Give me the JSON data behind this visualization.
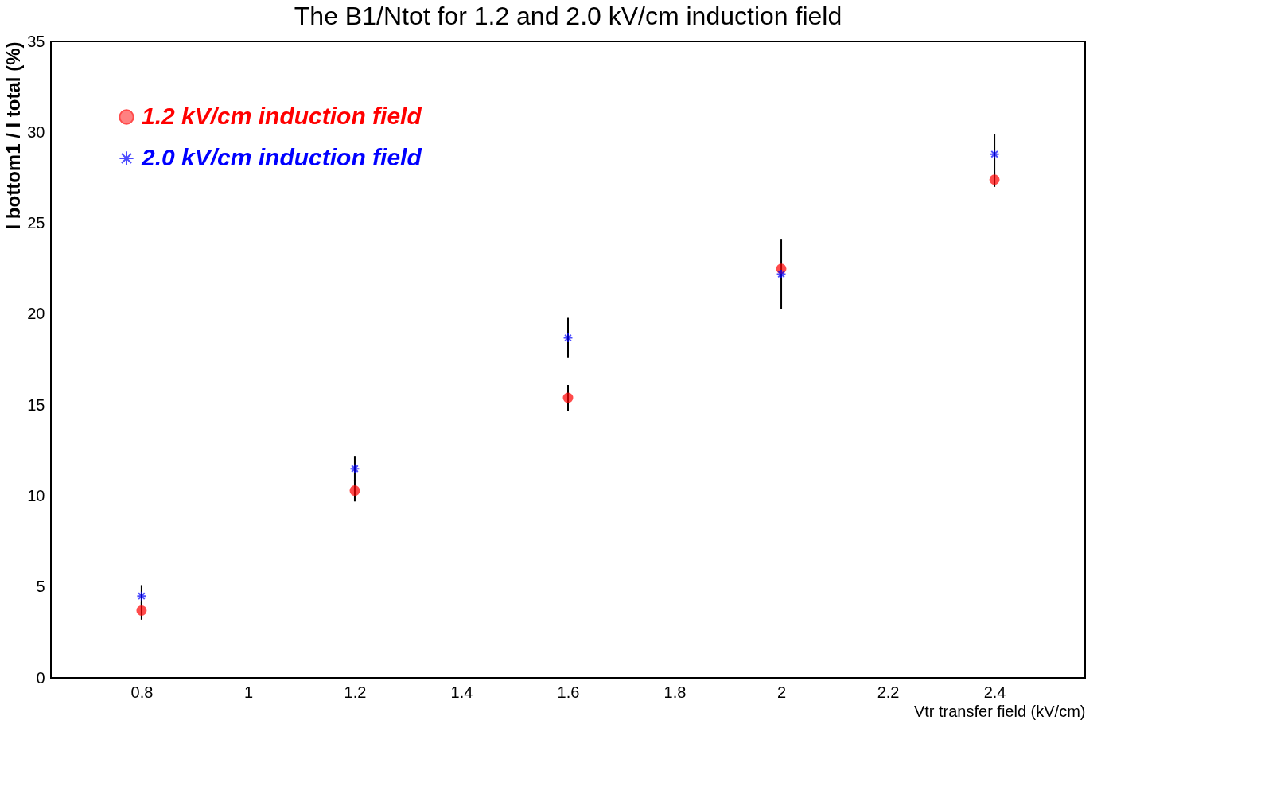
{
  "chart_data": {
    "type": "scatter",
    "title": "The B1/Ntot for 1.2 and 2.0 kV/cm induction field",
    "xlabel": "Vtr transfer field (kV/cm)",
    "ylabel": "I bottom1 / I total (%)",
    "x": [
      0.8,
      1.2,
      1.6,
      2.0,
      2.4
    ],
    "series": [
      {
        "name": "1.2 kV/cm induction field",
        "color": "#ff0000",
        "marker": "circle",
        "values": [
          3.7,
          10.3,
          15.4,
          22.5,
          27.4
        ],
        "errors": [
          0.5,
          0.6,
          0.7,
          null,
          0.4
        ]
      },
      {
        "name": "2.0 kV/cm induction field",
        "color": "#0000ff",
        "marker": "cross",
        "values": [
          4.5,
          11.5,
          18.7,
          22.2,
          28.8
        ],
        "errors": [
          0.6,
          0.7,
          1.1,
          1.9,
          1.1
        ]
      }
    ],
    "xlim": [
      0.63,
      2.57
    ],
    "xticks": [
      0.8,
      1,
      1.2,
      1.4,
      1.6,
      1.8,
      2,
      2.2,
      2.4
    ],
    "ylim": [
      0,
      35
    ],
    "yticks": [
      0,
      5,
      10,
      15,
      20,
      25,
      30,
      35
    ],
    "grid": false,
    "legend": "top left"
  }
}
